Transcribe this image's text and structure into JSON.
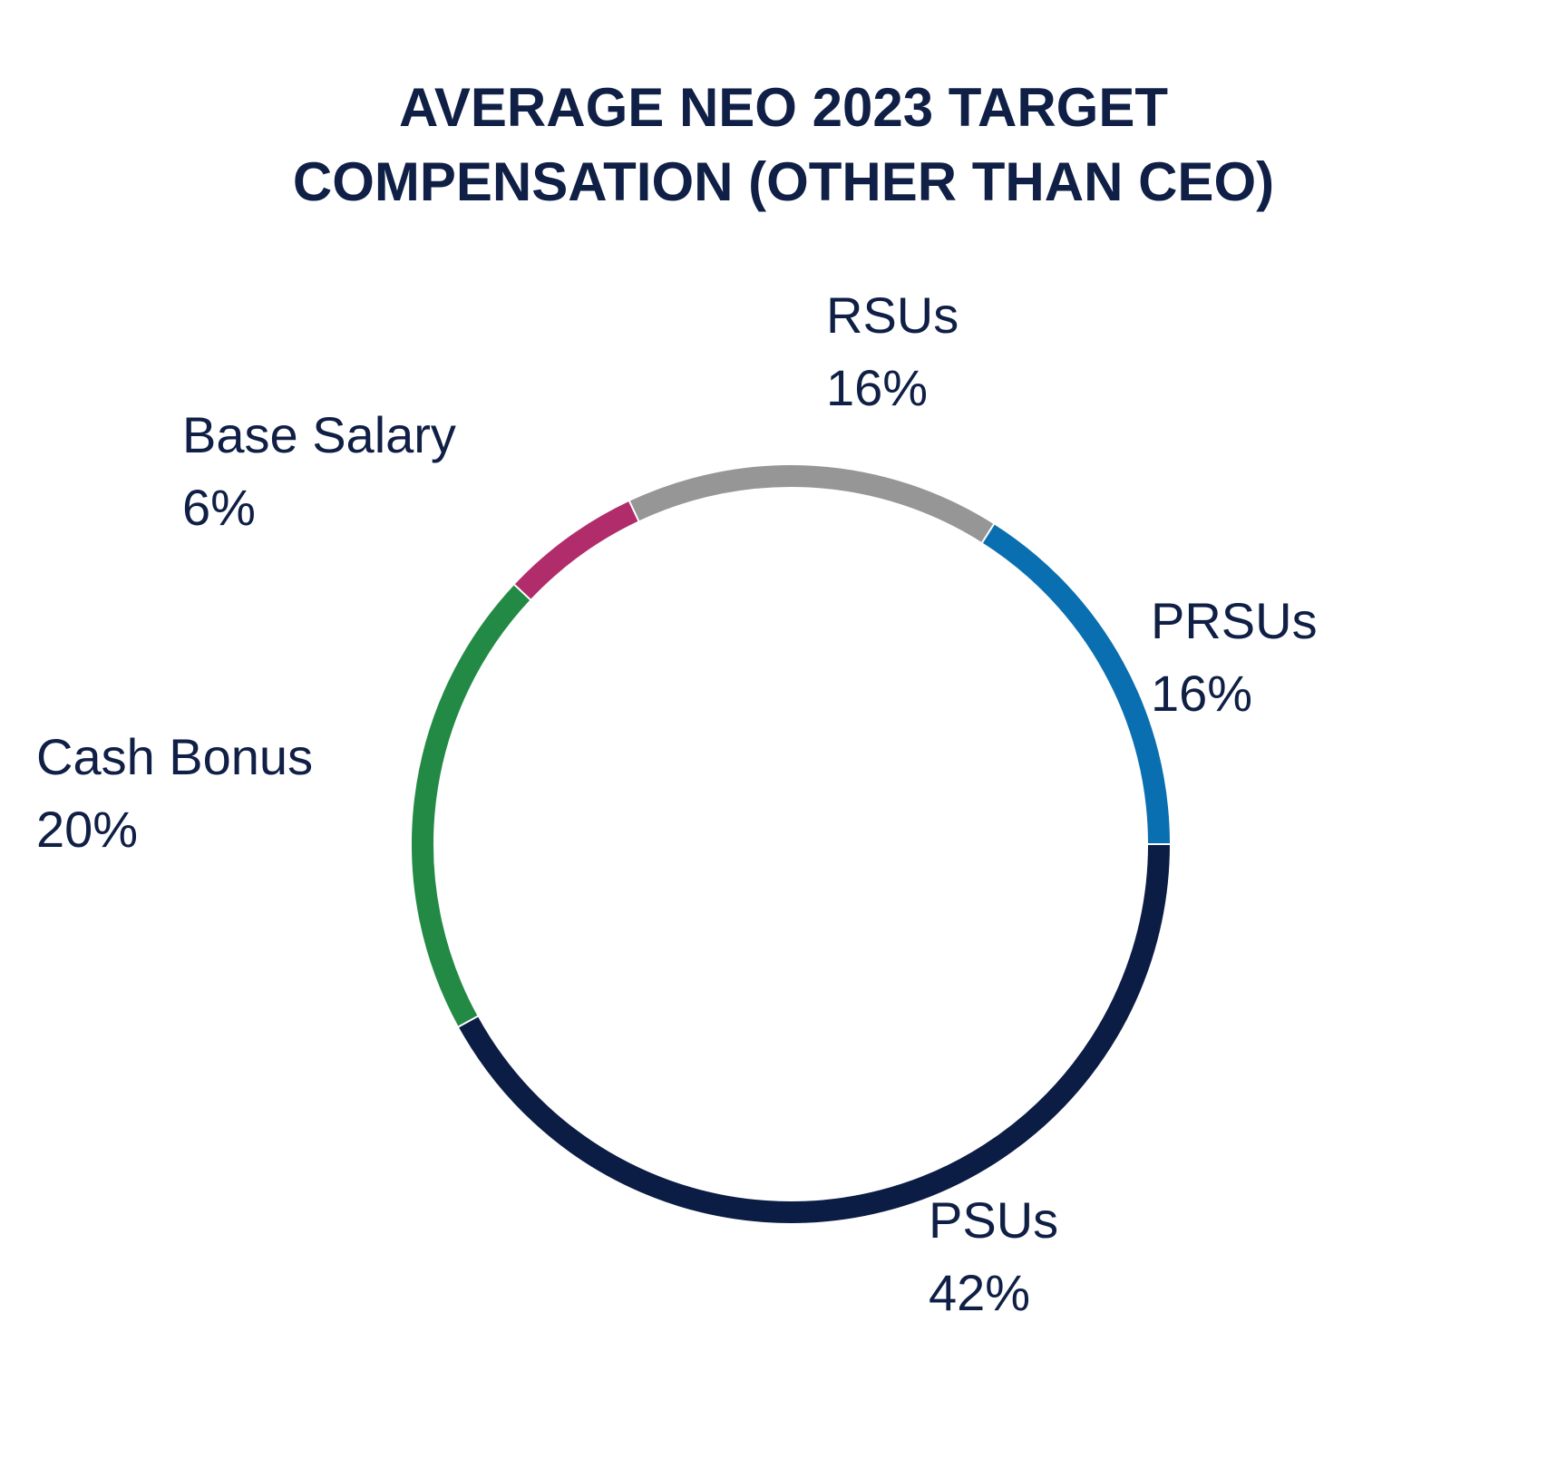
{
  "chart_data": {
    "type": "pie",
    "title": "AVERAGE NEO 2023 TARGET COMPENSATION (OTHER THAN CEO)",
    "title_lines": [
      "AVERAGE NEO 2023 TARGET",
      "COMPENSATION (OTHER THAN CEO)"
    ],
    "style": "donut (thin ring)",
    "slices": [
      {
        "name": "PSUs",
        "value": 42,
        "value_label": "42%",
        "color": "#0b1c45"
      },
      {
        "name": "Cash Bonus",
        "value": 20,
        "value_label": "20%",
        "color": "#238a45"
      },
      {
        "name": "Base Salary",
        "value": 6,
        "value_label": "6%",
        "color": "#b02c6b"
      },
      {
        "name": "RSUs",
        "value": 16,
        "value_label": "16%",
        "color": "#969696"
      },
      {
        "name": "PRSUs",
        "value": 16,
        "value_label": "16%",
        "color": "#0a6fb0"
      }
    ],
    "legend": "none (labels outside slices)"
  }
}
